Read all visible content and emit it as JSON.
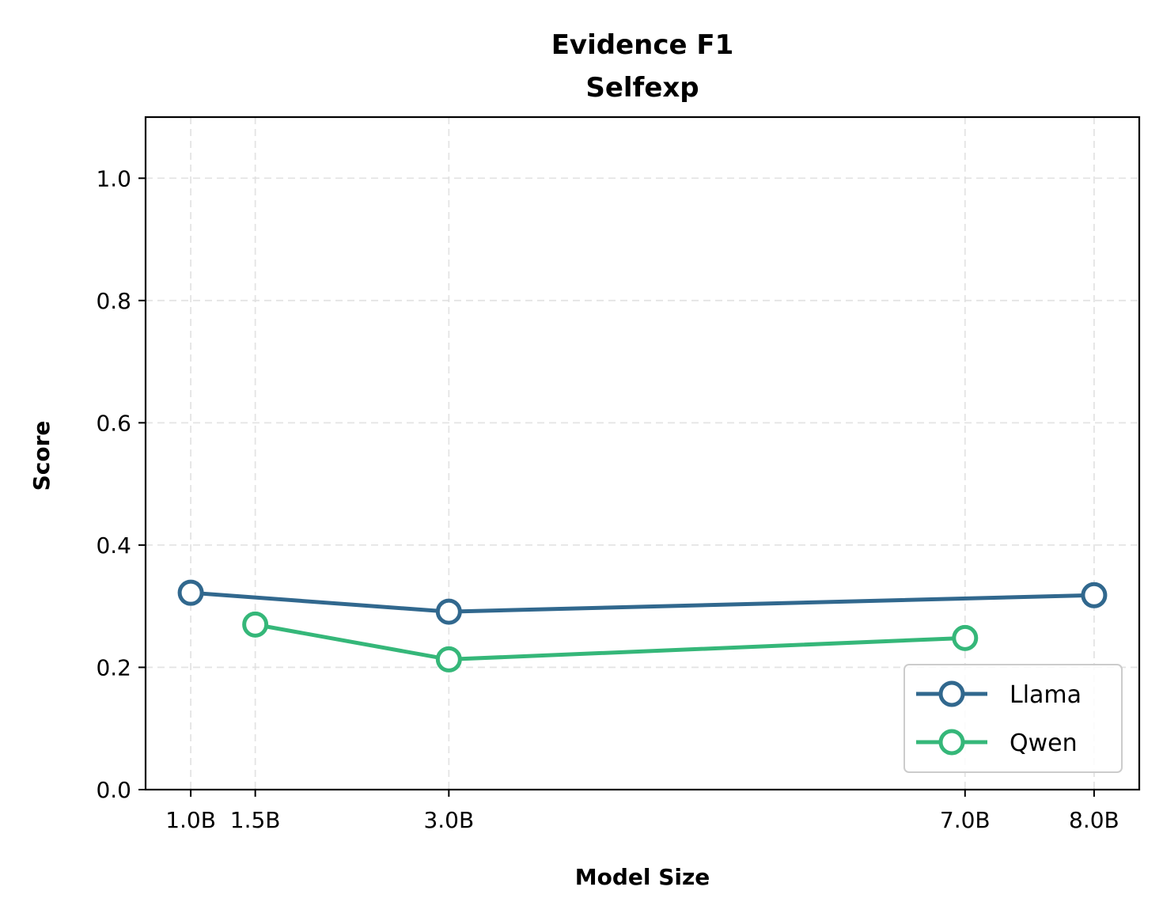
{
  "chart_data": {
    "type": "line",
    "title": [
      "Evidence F1",
      "Selfexp"
    ],
    "xlabel": "Model Size",
    "ylabel": "Score",
    "ylim": [
      0.0,
      1.1
    ],
    "xlim": [
      0.65,
      8.35
    ],
    "x_ticks": [
      1.0,
      1.5,
      3.0,
      7.0,
      8.0
    ],
    "x_tick_labels": [
      "1.0B",
      "1.5B",
      "3.0B",
      "7.0B",
      "8.0B"
    ],
    "y_ticks": [
      0.0,
      0.2,
      0.4,
      0.6,
      0.8,
      1.0
    ],
    "y_tick_labels": [
      "0.0",
      "0.2",
      "0.4",
      "0.6",
      "0.8",
      "1.0"
    ],
    "grid": true,
    "legend_position": "lower-right",
    "series": [
      {
        "name": "Llama",
        "color": "#31688e",
        "x": [
          1.0,
          3.0,
          8.0
        ],
        "y": [
          0.322,
          0.291,
          0.318
        ]
      },
      {
        "name": "Qwen",
        "color": "#35b779",
        "x": [
          1.5,
          3.0,
          7.0
        ],
        "y": [
          0.27,
          0.213,
          0.248
        ]
      }
    ]
  }
}
